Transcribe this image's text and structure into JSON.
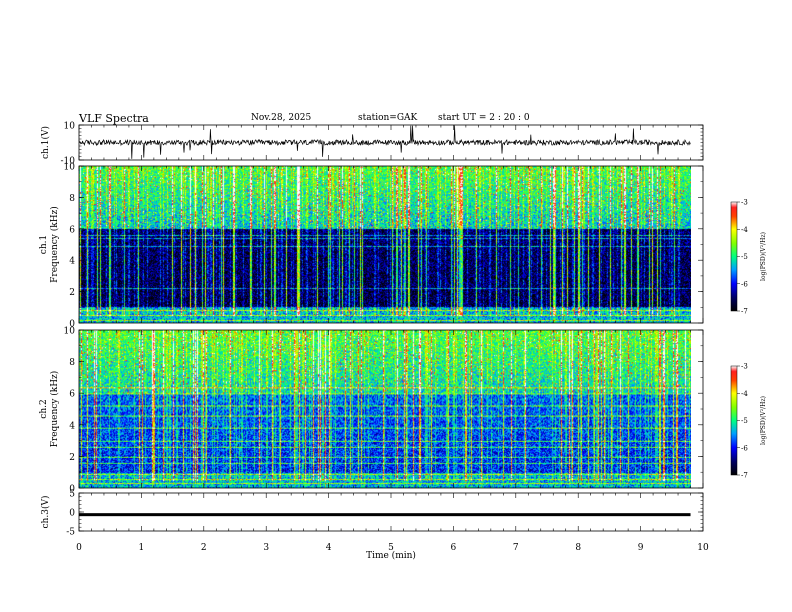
{
  "header": {
    "title": "VLF Spectra",
    "date": "Nov.28, 2025",
    "station": "station=GAK",
    "start_ut": "start  UT  =   2 : 20 : 0"
  },
  "chart_data": [
    {
      "type": "line",
      "name": "ch1-waveform",
      "ylabel": "ch.1(V)",
      "ylim": [
        -10,
        10
      ],
      "yticks": [
        "10",
        "-10"
      ],
      "xlim": [
        0,
        10
      ]
    },
    {
      "type": "heatmap",
      "name": "ch1-spectrogram",
      "ylabel_line1": "ch.1",
      "ylabel_line2": "Frequency (kHz)",
      "ylim": [
        0,
        10
      ],
      "yticks": [
        "0",
        "2",
        "4",
        "6",
        "8",
        "10"
      ],
      "xlim": [
        0,
        9.8
      ],
      "colorbar": {
        "label": "log(PSD)(V²/Hz)",
        "range": [
          -7,
          -3
        ],
        "ticks": [
          "-3",
          "-4",
          "-5",
          "-6",
          "-7"
        ]
      }
    },
    {
      "type": "heatmap",
      "name": "ch2-spectrogram",
      "ylabel_line1": "ch.2",
      "ylabel_line2": "Frequency (kHz)",
      "ylim": [
        0,
        10
      ],
      "yticks": [
        "0",
        "2",
        "4",
        "6",
        "8",
        "10"
      ],
      "xlim": [
        0,
        9.8
      ],
      "colorbar": {
        "label": "log(PSD)(V²/Hz)",
        "range": [
          -7,
          -3
        ],
        "ticks": [
          "-3",
          "-4",
          "-5",
          "-6",
          "-7"
        ]
      }
    },
    {
      "type": "line",
      "name": "ch3-waveform",
      "ylabel": "ch.3(V)",
      "ylim": [
        -5,
        5
      ],
      "yticks": [
        "5",
        "0",
        "-5"
      ],
      "xlim": [
        0,
        10
      ],
      "level": -0.7
    }
  ],
  "xaxis": {
    "label": "Time (min)",
    "ticks": [
      "0",
      "1",
      "2",
      "3",
      "4",
      "5",
      "6",
      "7",
      "8",
      "9",
      "10"
    ],
    "range": [
      0,
      10
    ]
  }
}
